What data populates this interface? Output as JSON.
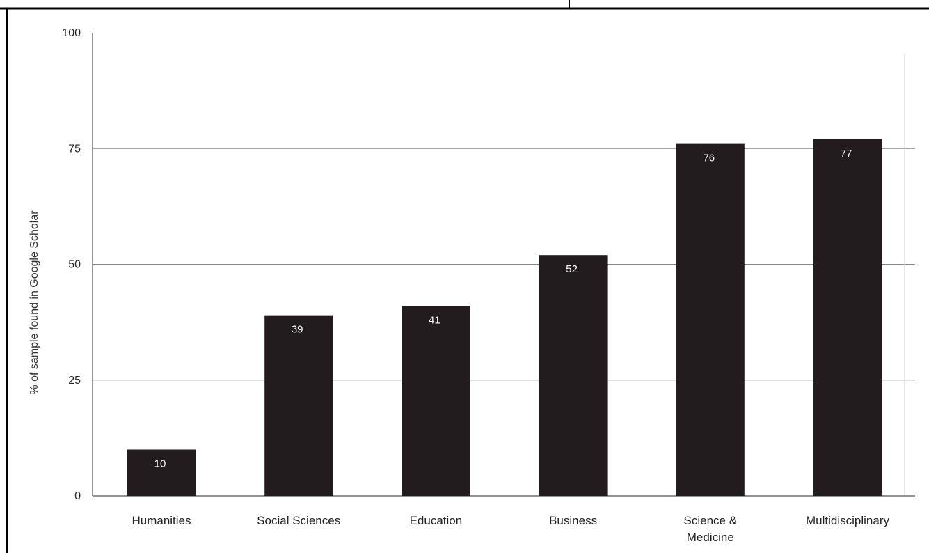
{
  "chart_data": {
    "type": "bar",
    "title": "",
    "xlabel": "",
    "ylabel": "% of sample found in Google Scholar",
    "categories": [
      "Humanities",
      "Social Sciences",
      "Education",
      "Business",
      "Science & Medicine",
      "Multidisciplinary"
    ],
    "category_lines": [
      [
        "Humanities"
      ],
      [
        "Social Sciences"
      ],
      [
        "Education"
      ],
      [
        "Business"
      ],
      [
        "Science &",
        "Medicine"
      ],
      [
        "Multidisciplinary"
      ]
    ],
    "values": [
      10,
      39,
      41,
      52,
      76,
      77
    ],
    "data_labels": [
      "10",
      "39",
      "41",
      "52",
      "76",
      "77"
    ],
    "ylim": [
      0,
      100
    ],
    "yticks": [
      0,
      25,
      50,
      75,
      100
    ],
    "ytick_labels": [
      "0",
      "25",
      "50",
      "75",
      "100"
    ],
    "grid": true,
    "legend": "none",
    "colors": {
      "bar": "#221c1e",
      "grid": "#8a8a8a",
      "frame": "#000000"
    }
  }
}
